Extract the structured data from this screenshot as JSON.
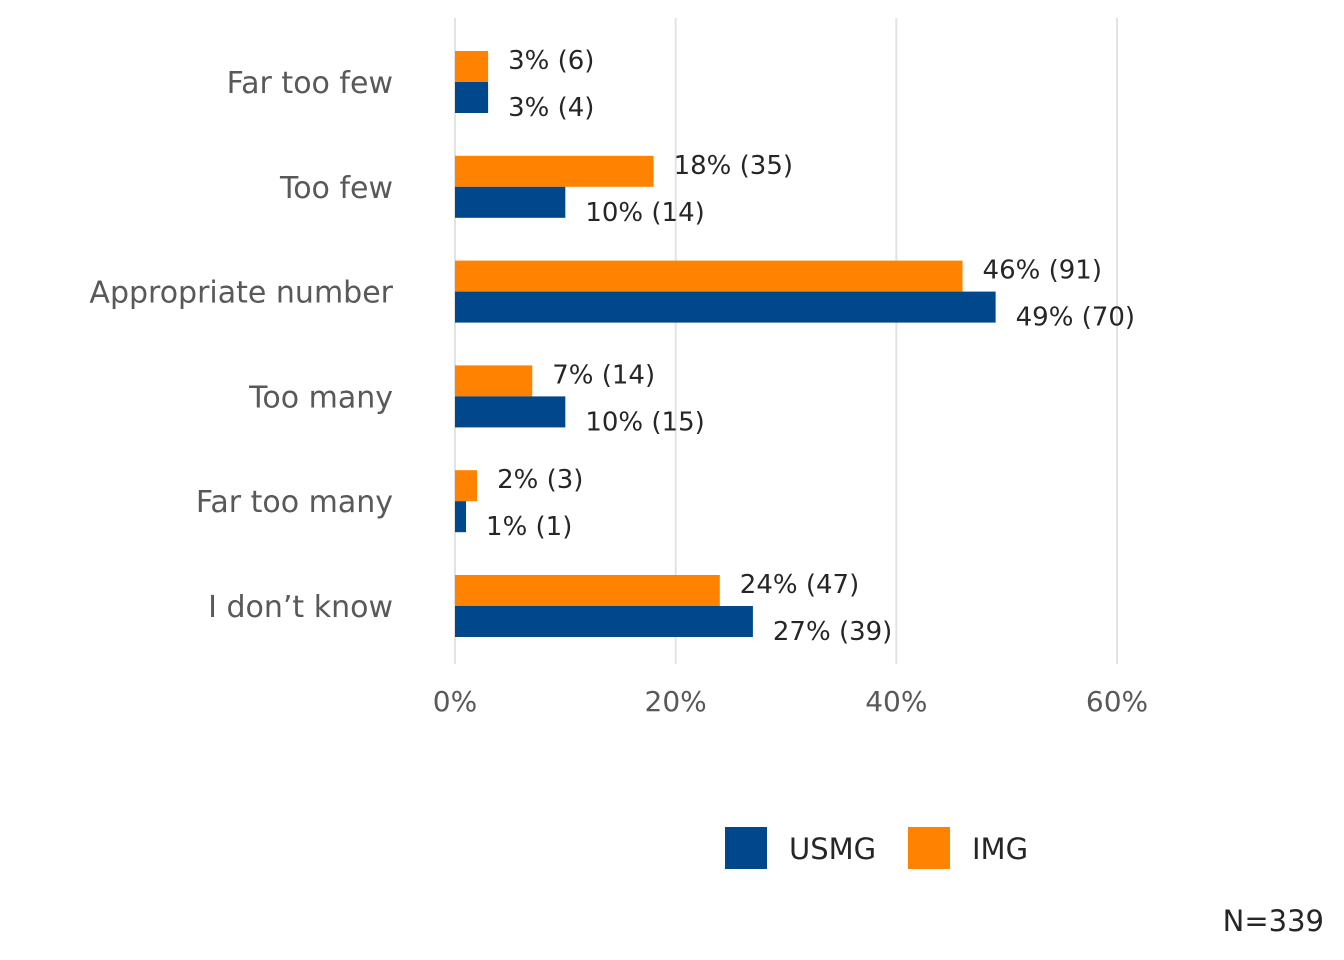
{
  "chart_data": {
    "type": "bar",
    "orientation": "horizontal",
    "categories": [
      "Far too few",
      "Too few",
      "Appropriate number",
      "Too many",
      "Far too many",
      "I don’t know"
    ],
    "series": [
      {
        "name": "IMG",
        "color": "#FF8200",
        "values": [
          3,
          18,
          46,
          7,
          2,
          24
        ],
        "labels": [
          "3% (6)",
          "18% (35)",
          "46% (91)",
          "7% (14)",
          "2% (3)",
          "24% (47)"
        ]
      },
      {
        "name": "USMG",
        "color": "#00478C",
        "values": [
          3,
          10,
          49,
          10,
          1,
          27
        ],
        "labels": [
          "3% (4)",
          "10% (14)",
          "49% (70)",
          "10% (15)",
          "1% (1)",
          "27% (39)"
        ]
      }
    ],
    "xlim": [
      0,
      60
    ],
    "xticks": [
      0,
      20,
      40,
      60
    ],
    "xtick_labels": [
      "0%",
      "20%",
      "40%",
      "60%"
    ],
    "grid": true,
    "legend_placement": "bottom",
    "legend_order": [
      "USMG",
      "IMG"
    ]
  },
  "note": "N=339"
}
